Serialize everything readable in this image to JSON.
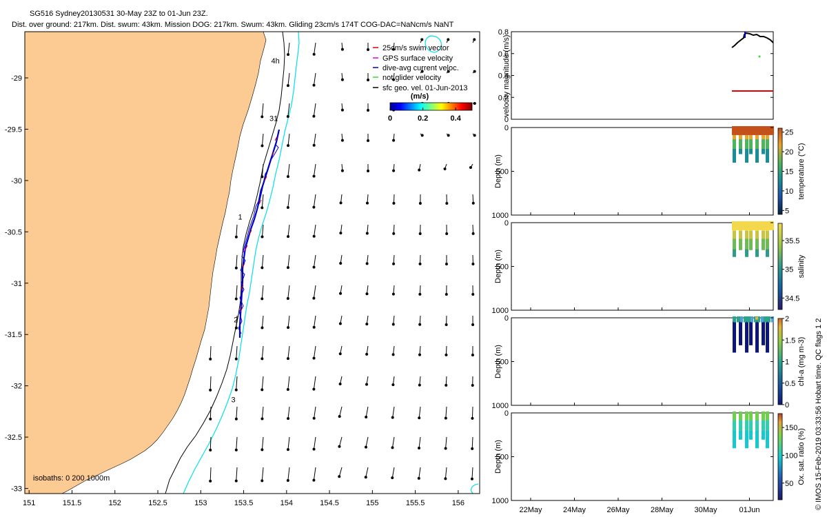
{
  "header": {
    "line1": "SG516 Sydney20130531 30-May 23Z to 01-Jun 23Z.",
    "line2": "Dist. over ground: 217km. Dist. swum: 43km. Mission DOG: 217km. Swum: 43km. Gliding 23cm/s 174T COG-DAC=NaNcm/s NaNT"
  },
  "footer": {
    "credit": "© IMOS 15-Feb-2019 03:33:56 Hobart time. QC flags 1  2"
  },
  "colors": {
    "land": "#fccb94",
    "isobath_200": "#000000",
    "isobath_1000": "#00e0e8",
    "track": "#0000c8",
    "swim_vector": "#e00000",
    "gps_velocity": "#e000e0",
    "dive_avg": "#0000c8",
    "not_glider": "#30e030",
    "geo_vel": "#000000"
  },
  "chart_data": [
    {
      "type": "scatter",
      "role": "map",
      "x_ticks": [
        "151",
        "151.5",
        "152",
        "152.5",
        "153",
        "153.5",
        "154",
        "154.5",
        "155",
        "155.5",
        "156"
      ],
      "y_ticks": [
        "-29",
        "-29.5",
        "-30",
        "-30.5",
        "-31",
        "-31.5",
        "-32",
        "-32.5",
        "-33"
      ],
      "xlim": [
        150.95,
        156.25
      ],
      "ylim": [
        -33.05,
        -28.55
      ],
      "legend": {
        "placement": "top-right",
        "entries": [
          "25cm/s swim vector",
          "GPS surface velocity",
          "dive-avg current veloc.",
          "not glider velocity",
          "sfc geo. vel. 01-Jun-2013"
        ]
      },
      "colorbar": {
        "unit": "(m/s)",
        "ticks": [
          "0",
          "0.2",
          "0.4"
        ],
        "range": [
          0,
          0.5
        ]
      },
      "isobaths_label": "isobaths: 0   200  1000m",
      "track_labels": [
        {
          "text": "31",
          "lon": 153.85,
          "lat": -29.42
        },
        {
          "text": "1",
          "lon": 153.46,
          "lat": -30.38
        },
        {
          "text": "2",
          "lon": 153.41,
          "lat": -31.38
        },
        {
          "text": "3",
          "lon": 153.38,
          "lat": -32.16
        },
        {
          "text": "4h",
          "lon": 153.87,
          "lat": -28.86
        }
      ]
    },
    {
      "type": "line",
      "role": "velocity-panel",
      "ylabel": "velocity magnitude (m/s)",
      "ylim": [
        0,
        0.8
      ],
      "y_ticks": [
        "0",
        "0.2",
        "0.4",
        "0.6",
        "0.8"
      ]
    },
    {
      "type": "scatter",
      "role": "profile-panel",
      "ylabel": "Depth (m)",
      "clabel": "temperature (°C)",
      "ylim": [
        1000,
        0
      ],
      "y_ticks": [
        "0",
        "500",
        "1000"
      ],
      "c_ticks": [
        "5",
        "10",
        "15",
        "20",
        "25"
      ],
      "crange": [
        4,
        26
      ]
    },
    {
      "type": "scatter",
      "role": "profile-panel",
      "ylabel": "Depth (m)",
      "clabel": "salinity",
      "ylim": [
        1000,
        0
      ],
      "y_ticks": [
        "0",
        "500",
        "1000"
      ],
      "c_ticks": [
        "34.5",
        "35",
        "35.5"
      ],
      "crange": [
        34.3,
        35.8
      ]
    },
    {
      "type": "scatter",
      "role": "profile-panel",
      "ylabel": "Depth (m)",
      "clabel": "chl-a (mg m-3)",
      "ylim": [
        1000,
        0
      ],
      "y_ticks": [
        "0",
        "500",
        "1000"
      ],
      "c_ticks": [
        "0",
        "0.5",
        "1",
        "1.5",
        "2"
      ],
      "crange": [
        0,
        2
      ]
    },
    {
      "type": "scatter",
      "role": "profile-panel",
      "ylabel": "Depth (m)",
      "clabel": "Ox. sat. ratio (%)",
      "ylim": [
        1000,
        0
      ],
      "y_ticks": [
        "0",
        "500",
        "1000"
      ],
      "c_ticks": [
        "50",
        "100",
        "150"
      ],
      "crange": [
        20,
        175
      ],
      "x_ticks": [
        "22May",
        "24May",
        "26May",
        "28May",
        "30May",
        "01Jun"
      ]
    }
  ]
}
